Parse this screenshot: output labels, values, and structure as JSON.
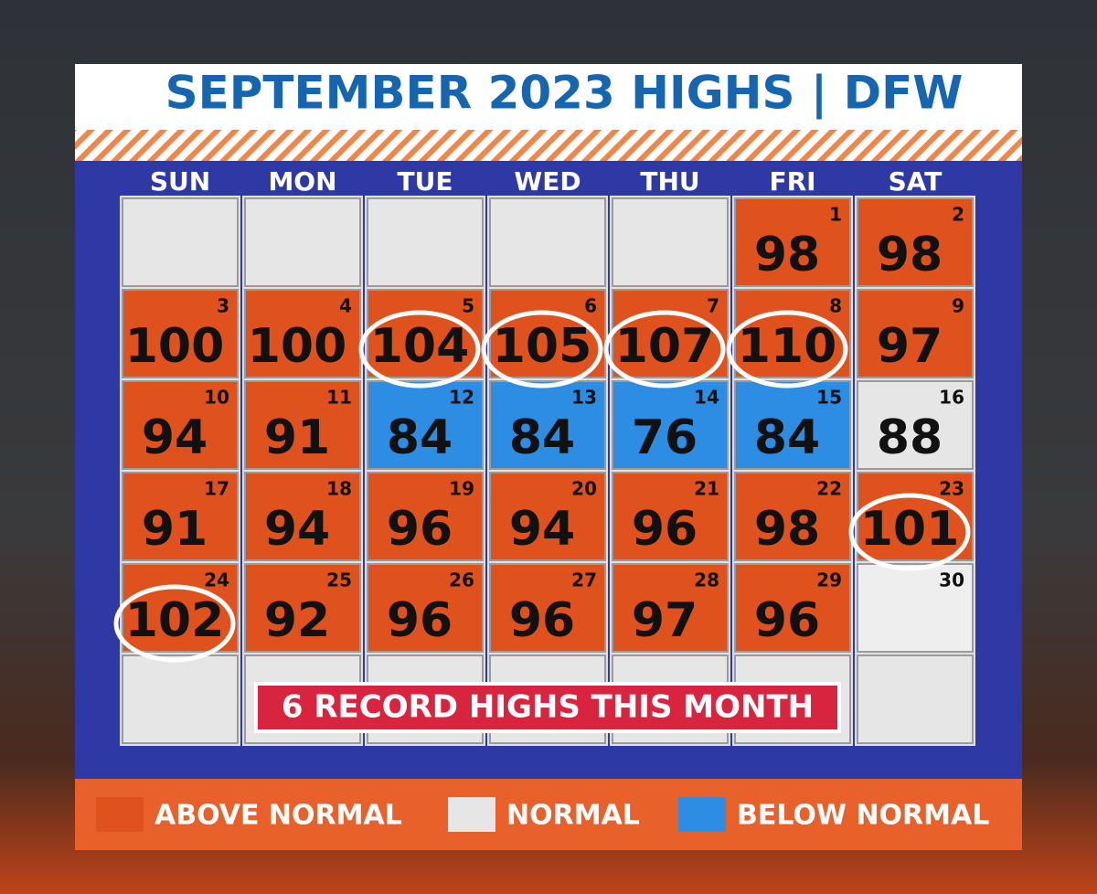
{
  "header": {
    "title": "SEPTEMBER 2023 HIGHS | DFW"
  },
  "weekdays": [
    "SUN",
    "MON",
    "TUE",
    "WED",
    "THU",
    "FRI",
    "SAT"
  ],
  "days": [
    {
      "day": 1,
      "high": 98,
      "color": "#e0521d"
    },
    {
      "day": 2,
      "high": 98,
      "color": "#e0521d"
    },
    {
      "day": 3,
      "high": 100,
      "color": "#e0521d"
    },
    {
      "day": 4,
      "high": 100,
      "color": "#e0521d"
    },
    {
      "day": 5,
      "high": 104,
      "color": "#e0521d",
      "record": true
    },
    {
      "day": 6,
      "high": 105,
      "color": "#e0521d",
      "record": true
    },
    {
      "day": 7,
      "high": 107,
      "color": "#e0521d",
      "record": true
    },
    {
      "day": 8,
      "high": 110,
      "color": "#e0521d",
      "record": true
    },
    {
      "day": 9,
      "high": 97,
      "color": "#e0521d"
    },
    {
      "day": 10,
      "high": 94,
      "color": "#e0521d"
    },
    {
      "day": 11,
      "high": 91,
      "color": "#e0521d"
    },
    {
      "day": 12,
      "high": 84,
      "color": "#2c8de3"
    },
    {
      "day": 13,
      "high": 84,
      "color": "#2c8de3"
    },
    {
      "day": 14,
      "high": 76,
      "color": "#2c8de3"
    },
    {
      "day": 15,
      "high": 84,
      "color": "#2c8de3"
    },
    {
      "day": 16,
      "high": 88,
      "color": "#e6e6e6"
    },
    {
      "day": 17,
      "high": 91,
      "color": "#e0521d"
    },
    {
      "day": 18,
      "high": 94,
      "color": "#e0521d"
    },
    {
      "day": 19,
      "high": 96,
      "color": "#e0521d"
    },
    {
      "day": 20,
      "high": 94,
      "color": "#e0521d"
    },
    {
      "day": 21,
      "high": 96,
      "color": "#e0521d"
    },
    {
      "day": 22,
      "high": 98,
      "color": "#e0521d"
    },
    {
      "day": 23,
      "high": 101,
      "color": "#e0521d",
      "record": true
    },
    {
      "day": 24,
      "high": 102,
      "color": "#e0521d",
      "record": true
    },
    {
      "day": 25,
      "high": 92,
      "color": "#e0521d"
    },
    {
      "day": 26,
      "high": 96,
      "color": "#e0521d"
    },
    {
      "day": 27,
      "high": 96,
      "color": "#e0521d"
    },
    {
      "day": 28,
      "high": 97,
      "color": "#e0521d"
    },
    {
      "day": 29,
      "high": 96,
      "color": "#e0521d"
    },
    {
      "day": 30,
      "color": "#eeeeee"
    }
  ],
  "banner": "6 RECORD HIGHS THIS MONTH",
  "legend": [
    {
      "label": "ABOVE NORMAL",
      "color": "#e0521d"
    },
    {
      "label": "NORMAL",
      "color": "#e6e6e6"
    },
    {
      "label": "BELOW NORMAL",
      "color": "#2c8de3"
    }
  ]
}
